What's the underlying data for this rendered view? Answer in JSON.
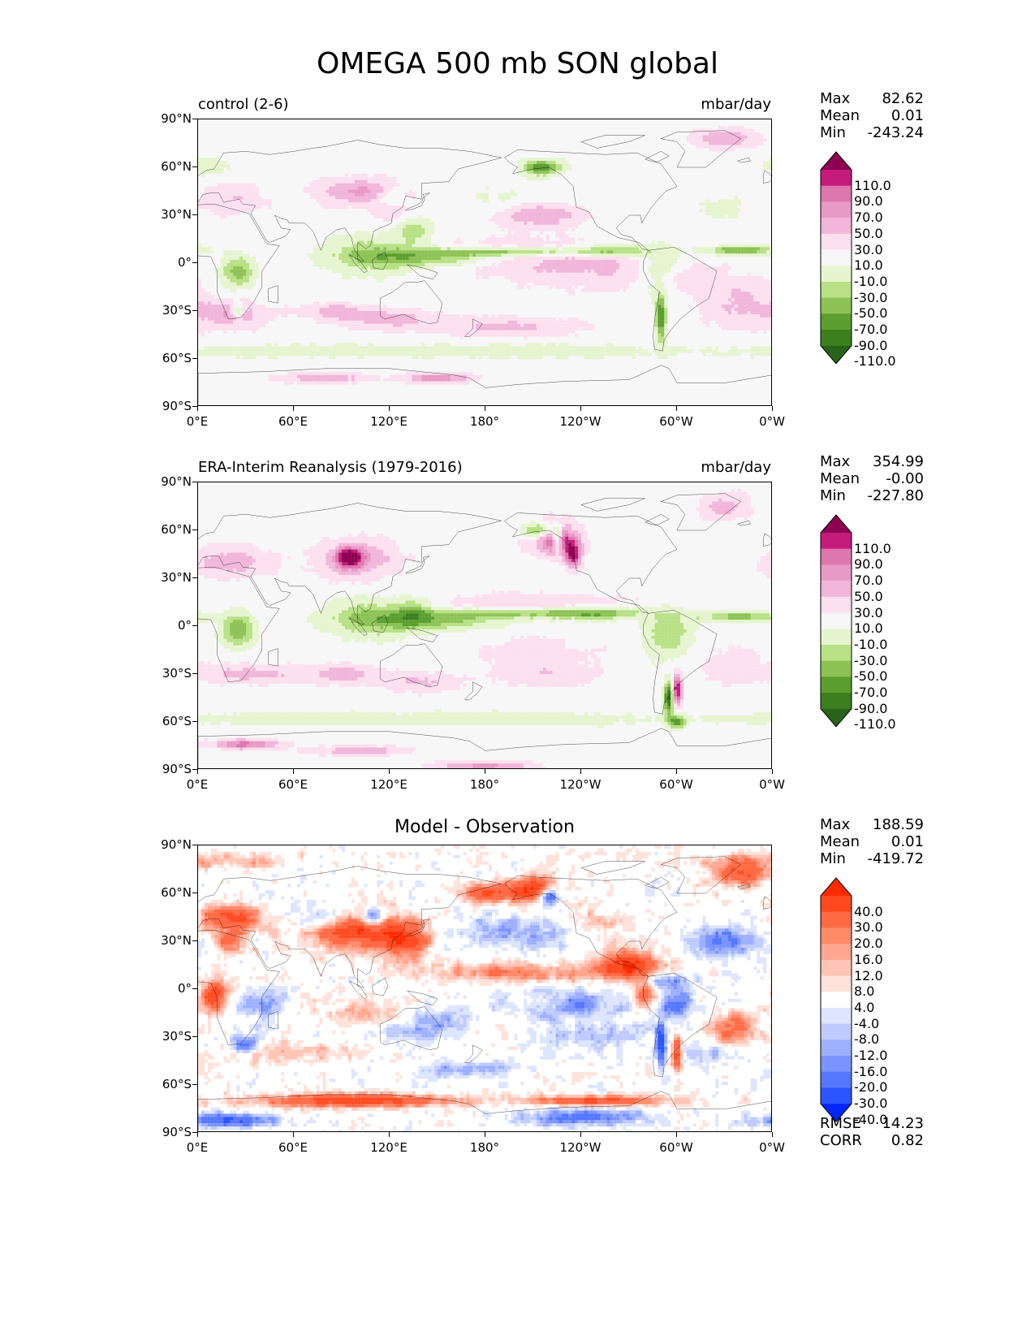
{
  "title": "OMEGA 500 mb SON global",
  "x_ticks": [
    "0°E",
    "60°E",
    "120°E",
    "180°",
    "120°W",
    "60°W",
    "0°W"
  ],
  "y_ticks": [
    "90°N",
    "60°N",
    "30°N",
    "0°",
    "30°S",
    "60°S",
    "90°S"
  ],
  "panels": [
    {
      "label": "control (2-6)",
      "units": "mbar/day",
      "stats": {
        "max_label": "Max",
        "max": "82.62",
        "mean_label": "Mean",
        "mean": "0.01",
        "min_label": "Min",
        "min": "-243.24"
      },
      "colorbar": {
        "labels": [
          "110.0",
          "90.0",
          "70.0",
          "50.0",
          "30.0",
          "10.0",
          "-10.0",
          "-30.0",
          "-50.0",
          "-70.0",
          "-90.0",
          "-110.0"
        ],
        "colors": [
          "#8e0152",
          "#c51b7d",
          "#de77ae",
          "#e89ac6",
          "#f1b6da",
          "#fde0ef",
          "#f7f7f7",
          "#e6f5d0",
          "#b8e186",
          "#8dc256",
          "#5a9e2f",
          "#3b7f1f",
          "#276419"
        ]
      }
    },
    {
      "label": "ERA-Interim Reanalysis (1979-2016)",
      "units": "mbar/day",
      "stats": {
        "max_label": "Max",
        "max": "354.99",
        "mean_label": "Mean",
        "mean": "-0.00",
        "min_label": "Min",
        "min": "-227.80"
      },
      "colorbar": {
        "labels": [
          "110.0",
          "90.0",
          "70.0",
          "50.0",
          "30.0",
          "10.0",
          "-10.0",
          "-30.0",
          "-50.0",
          "-70.0",
          "-90.0",
          "-110.0"
        ],
        "colors": [
          "#8e0152",
          "#c51b7d",
          "#de77ae",
          "#e89ac6",
          "#f1b6da",
          "#fde0ef",
          "#f7f7f7",
          "#e6f5d0",
          "#b8e186",
          "#8dc256",
          "#5a9e2f",
          "#3b7f1f",
          "#276419"
        ]
      }
    },
    {
      "subtitle": "Model - Observation",
      "stats": {
        "max_label": "Max",
        "max": "188.59",
        "mean_label": "Mean",
        "mean": "0.01",
        "min_label": "Min",
        "min": "-419.72"
      },
      "extra": {
        "rmse_label": "RMSE",
        "rmse": "14.23",
        "corr_label": "CORR",
        "corr": "0.82"
      },
      "colorbar": {
        "labels": [
          "40.0",
          "30.0",
          "20.0",
          "16.0",
          "12.0",
          "8.0",
          "4.0",
          "-4.0",
          "-8.0",
          "-12.0",
          "-16.0",
          "-20.0",
          "-30.0",
          "-40.0"
        ],
        "colors": [
          "#ff2a00",
          "#ff4a20",
          "#ff6a45",
          "#ff8a6a",
          "#ffa690",
          "#ffc4b4",
          "#ffe2da",
          "#ffffff",
          "#dde5ff",
          "#bfcbff",
          "#9db0ff",
          "#7b94ff",
          "#5577ff",
          "#2a55ff",
          "#0026ff"
        ]
      }
    }
  ]
}
